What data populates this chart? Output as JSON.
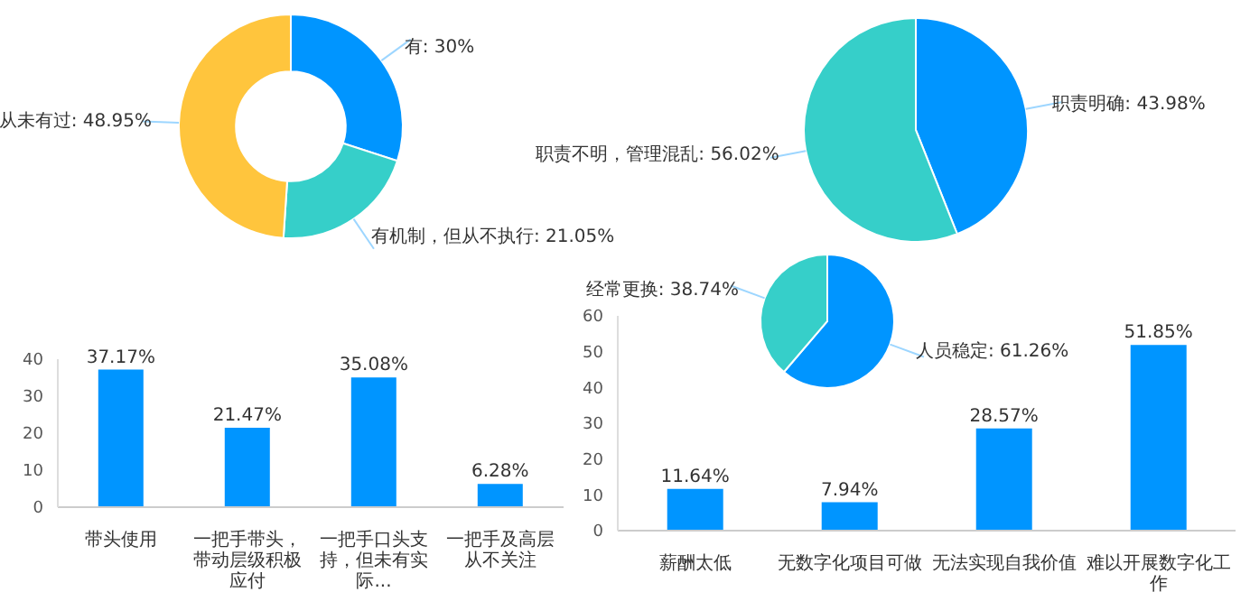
{
  "chart_data": [
    {
      "type": "donut",
      "categories": [
        "有",
        "有机制，但从不执行",
        "从未有过"
      ],
      "values": [
        30,
        21.05,
        48.95
      ],
      "value_labels": [
        "30%",
        "21.05%",
        "48.95%"
      ],
      "colors": [
        "#0095ff",
        "#36cfc9",
        "#ffc53d"
      ]
    },
    {
      "type": "pie",
      "categories": [
        "职责明确",
        "职责不明，管理混乱"
      ],
      "values": [
        43.98,
        56.02
      ],
      "value_labels": [
        "43.98%",
        "56.02%"
      ],
      "colors": [
        "#0095ff",
        "#36cfc9"
      ]
    },
    {
      "type": "bar",
      "categories": [
        "带头使用",
        "一把手带头，带动层级积极应付",
        "一把手口头支持，但未有实际...",
        "一把手及高层从不关注"
      ],
      "values": [
        37.17,
        21.47,
        35.08,
        6.28
      ],
      "value_labels": [
        "37.17%",
        "21.47%",
        "35.08%",
        "6.28%"
      ],
      "color": "#0095ff",
      "ylim": [
        0,
        40
      ],
      "yticks": [
        0,
        10,
        20,
        30,
        40
      ]
    },
    {
      "type": "bar",
      "categories": [
        "薪酬太低",
        "无数字化项目可做",
        "无法实现自我价值",
        "难以开展数字化工作"
      ],
      "values": [
        11.64,
        7.94,
        28.57,
        51.85
      ],
      "value_labels": [
        "11.64%",
        "7.94%",
        "28.57%",
        "51.85%"
      ],
      "color": "#0095ff",
      "ylim": [
        0,
        60
      ],
      "yticks": [
        0,
        10,
        20,
        30,
        40,
        50,
        60
      ]
    },
    {
      "type": "pie",
      "categories": [
        "人员稳定",
        "经常更换"
      ],
      "values": [
        61.26,
        38.74
      ],
      "value_labels": [
        "61.26%",
        "38.74%"
      ],
      "colors": [
        "#0095ff",
        "#36cfc9"
      ]
    }
  ]
}
